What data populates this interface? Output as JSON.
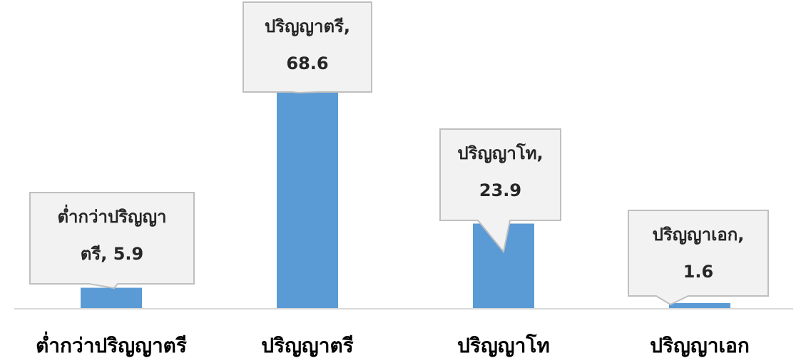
{
  "chart_data": {
    "type": "bar",
    "categories": [
      "ต่ำกว่าปริญญาตรี",
      "ปริญญาตรี",
      "ปริญญาโท",
      "ปริญญาเอก"
    ],
    "values": [
      5.9,
      68.6,
      23.9,
      1.6
    ],
    "data_labels": [
      [
        "ต่ำกว่าปริญญา",
        "ตรี, 5.9"
      ],
      [
        "ปริญญาตรี,",
        "68.6"
      ],
      [
        "ปริญญาโท,",
        "23.9"
      ],
      [
        "ปริญญาเอก,",
        "1.6"
      ]
    ],
    "title": "",
    "xlabel": "",
    "ylabel": "",
    "ylim": [
      0,
      80
    ],
    "grid": false,
    "legend": "none"
  },
  "colors": {
    "bar": "#5b9bd5",
    "callout_fill": "#f2f2f2",
    "callout_border": "#bfbfbf",
    "axis": "#d9d9d9"
  }
}
